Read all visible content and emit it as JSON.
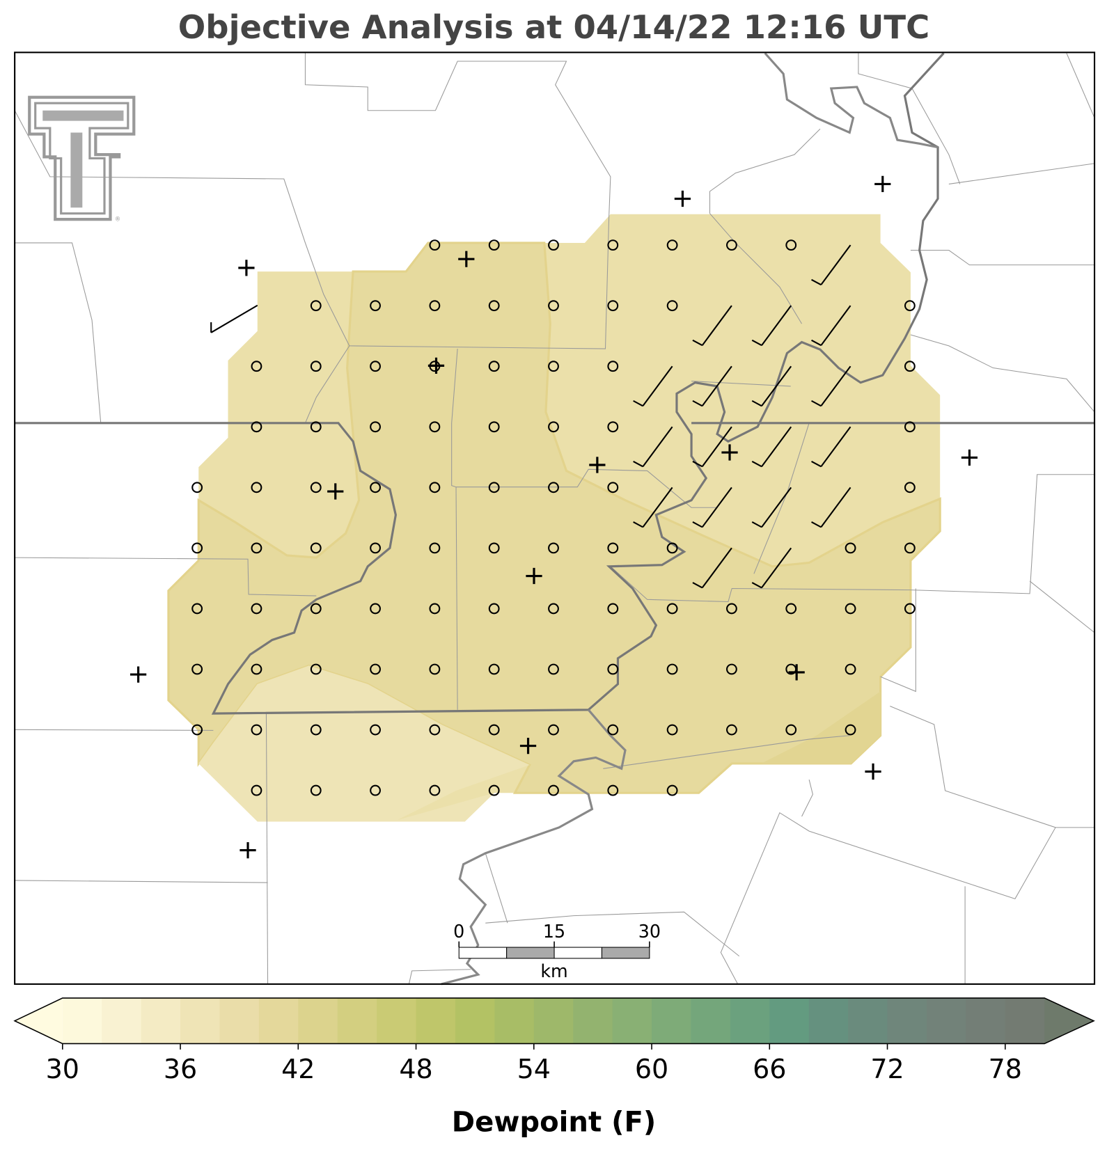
{
  "title": "Objective Analysis at 04/14/22 12:16 UTC",
  "scale_bar": {
    "ticks": [
      0,
      15,
      30
    ],
    "unit": "km"
  },
  "colorbar": {
    "label": "Dewpoint (F)",
    "range": [
      30,
      80
    ],
    "ticks": [
      30,
      36,
      42,
      48,
      54,
      60,
      66,
      72,
      78
    ],
    "colors": [
      "#fdf9dc",
      "#f9f2d2",
      "#f4ebc4",
      "#efe4b6",
      "#eadda9",
      "#e4d89b",
      "#dcd38d",
      "#d3cf80",
      "#cacb74",
      "#bfc66a",
      "#b3c264",
      "#a8bd66",
      "#9eb86a",
      "#93b36f",
      "#89b074",
      "#7eab78",
      "#74a67b",
      "#6ba17e",
      "#639b80",
      "#65917f",
      "#6a8b7d",
      "#6f867b",
      "#728279",
      "#737e76",
      "#737b72"
    ],
    "under_color": "#fffbe0",
    "over_color": "#6e7a6b"
  }
}
